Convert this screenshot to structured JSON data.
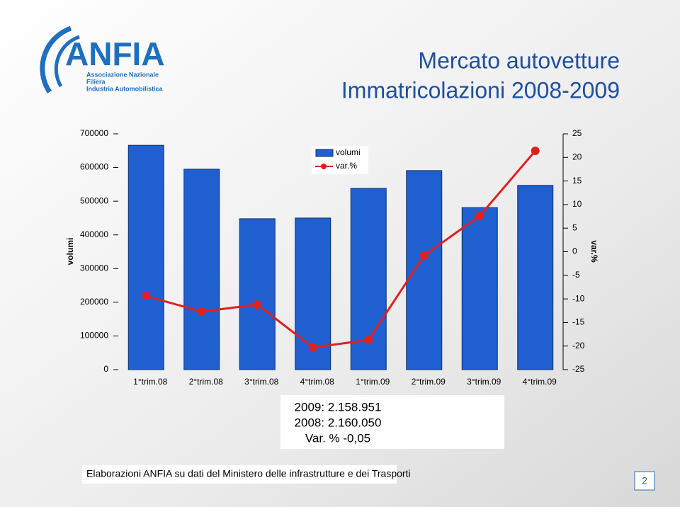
{
  "header": {
    "title_line1": "Mercato autovetture",
    "title_line2": "Immatricolazioni 2008-2009"
  },
  "logo": {
    "name": "ANFIA",
    "line1": "Associazione Nazionale",
    "line2": "Filiera",
    "line3": "Industria Automobilistica"
  },
  "chart_data": {
    "type": "bar_line",
    "categories": [
      "1°trim.08",
      "2°trim.08",
      "3°trim.08",
      "4°trim.08",
      "1°trim.09",
      "2°trim.09",
      "3°trim.09",
      "4°trim.09"
    ],
    "series": [
      {
        "name": "volumi",
        "color": "#1f5fd0",
        "values": [
          666000,
          595000,
          448000,
          450000,
          538000,
          591000,
          481000,
          547000
        ]
      },
      {
        "name": "var.%",
        "color": "#e0201f",
        "axis": "y2",
        "values": [
          -9.4,
          -12.7,
          -11.2,
          -20.3,
          -18.7,
          -0.8,
          7.6,
          21.4
        ]
      }
    ],
    "y_label": "volumi",
    "y2_label": "var.%",
    "ylim": [
      0,
      700000
    ],
    "yticks": [
      0,
      100000,
      200000,
      300000,
      400000,
      500000,
      600000,
      700000
    ],
    "y2lim": [
      -25,
      25
    ],
    "y2ticks": [
      -25,
      -20,
      -15,
      -10,
      -5,
      0,
      5,
      10,
      15,
      20,
      25
    ]
  },
  "summary": [
    "2009: 2.158.951",
    "2008: 2.160.050",
    "Var. % -0,05"
  ],
  "footer": "Elaborazioni ANFIA  su dati del Ministero delle infrastrutture e dei Trasporti",
  "page_number": "2"
}
